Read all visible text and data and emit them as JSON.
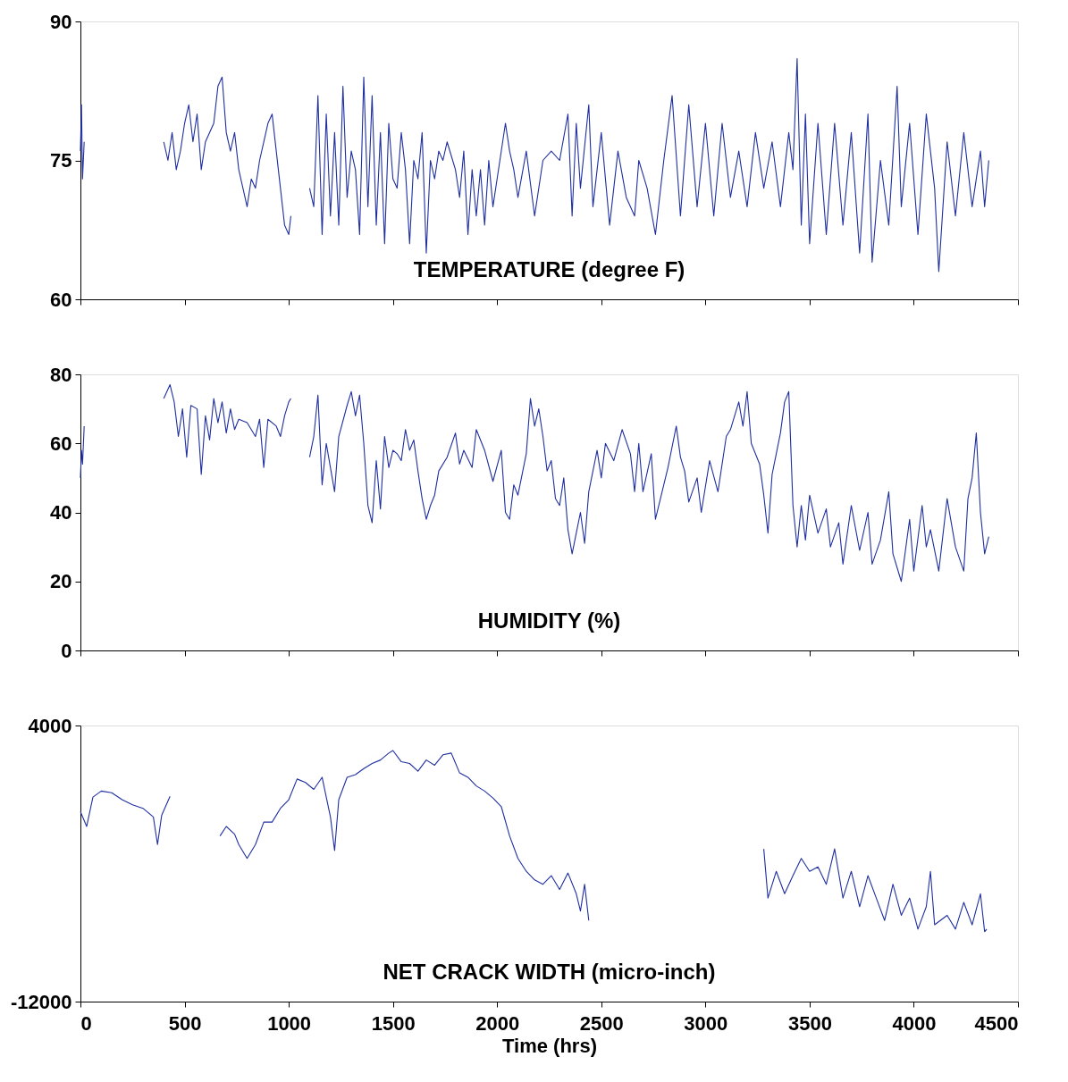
{
  "chart_data": [
    {
      "type": "line",
      "title": "TEMPERATURE (degree F)",
      "xlim": [
        0,
        4500
      ],
      "xticks": [
        0,
        500,
        1000,
        1500,
        2000,
        2500,
        3000,
        3500,
        4000,
        4500
      ],
      "ylim": [
        60,
        90
      ],
      "yticks": [
        60,
        75,
        90
      ],
      "tick_labels": "y",
      "grid": false,
      "line_style": "solid",
      "series": [
        {
          "color": "#1f2fa0",
          "x": [
            0,
            5,
            10,
            18,
            200,
            400,
            420,
            440,
            460,
            480,
            500,
            520,
            540,
            560,
            580,
            600,
            640,
            660,
            680,
            700,
            720,
            740,
            760,
            780,
            800,
            820,
            840,
            860,
            880,
            900,
            920,
            940,
            960,
            980,
            1000,
            1010,
            1050,
            1100,
            1120,
            1140,
            1160,
            1180,
            1200,
            1220,
            1240,
            1260,
            1280,
            1300,
            1320,
            1340,
            1360,
            1380,
            1400,
            1420,
            1440,
            1460,
            1480,
            1500,
            1520,
            1540,
            1560,
            1580,
            1600,
            1620,
            1640,
            1660,
            1680,
            1700,
            1720,
            1740,
            1760,
            1800,
            1820,
            1840,
            1860,
            1880,
            1900,
            1920,
            1940,
            1960,
            1980,
            2000,
            2040,
            2060,
            2080,
            2100,
            2140,
            2180,
            2220,
            2260,
            2300,
            2340,
            2360,
            2380,
            2400,
            2440,
            2460,
            2500,
            2540,
            2580,
            2620,
            2660,
            2680,
            2720,
            2760,
            2800,
            2840,
            2880,
            2920,
            2960,
            3000,
            3040,
            3080,
            3120,
            3160,
            3200,
            3240,
            3280,
            3320,
            3360,
            3400,
            3420,
            3440,
            3460,
            3480,
            3500,
            3540,
            3580,
            3620,
            3660,
            3700,
            3740,
            3780,
            3800,
            3840,
            3880,
            3920,
            3940,
            3980,
            4020,
            4060,
            4100,
            4120,
            4160,
            4200,
            4240,
            4280,
            4320,
            4340,
            4360
          ],
          "values": [
            76,
            81,
            73,
            77,
            null,
            77,
            75,
            78,
            74,
            76,
            79,
            81,
            77,
            80,
            74,
            77,
            79,
            83,
            84,
            78,
            76,
            78,
            74,
            72,
            70,
            73,
            72,
            75,
            77,
            79,
            80,
            76,
            72,
            68,
            67,
            69,
            null,
            72,
            70,
            82,
            67,
            80,
            69,
            78,
            68,
            83,
            71,
            76,
            74,
            67,
            84,
            70,
            82,
            68,
            78,
            66,
            79,
            73,
            72,
            78,
            74,
            66,
            75,
            73,
            78,
            65,
            75,
            73,
            76,
            75,
            77,
            74,
            71,
            76,
            67,
            74,
            69,
            74,
            68,
            75,
            70,
            73,
            79,
            76,
            74,
            71,
            76,
            69,
            75,
            76,
            75,
            80,
            69,
            79,
            72,
            81,
            70,
            78,
            68,
            76,
            71,
            69,
            75,
            72,
            67,
            75,
            82,
            69,
            81,
            70,
            79,
            69,
            79,
            71,
            76,
            70,
            78,
            72,
            77,
            70,
            78,
            74,
            86,
            68,
            80,
            66,
            79,
            67,
            79,
            68,
            78,
            65,
            80,
            64,
            75,
            68,
            83,
            70,
            79,
            67,
            80,
            72,
            63,
            77,
            69,
            78,
            70,
            76,
            70,
            75
          ]
        }
      ]
    },
    {
      "type": "line",
      "title": "HUMIDITY (%)",
      "xlim": [
        0,
        4500
      ],
      "xticks": [
        0,
        500,
        1000,
        1500,
        2000,
        2500,
        3000,
        3500,
        4000,
        4500
      ],
      "ylim": [
        0,
        80
      ],
      "yticks": [
        0,
        20,
        40,
        60,
        80
      ],
      "tick_labels": "y",
      "grid": false,
      "line_style": "solid",
      "series": [
        {
          "color": "#1f2fa0",
          "x": [
            0,
            5,
            10,
            18,
            200,
            400,
            430,
            450,
            470,
            490,
            510,
            530,
            560,
            580,
            600,
            620,
            640,
            660,
            680,
            700,
            720,
            740,
            760,
            800,
            840,
            860,
            880,
            900,
            940,
            960,
            980,
            1000,
            1010,
            1050,
            1100,
            1120,
            1140,
            1160,
            1180,
            1200,
            1220,
            1240,
            1280,
            1300,
            1320,
            1340,
            1360,
            1380,
            1400,
            1420,
            1440,
            1460,
            1480,
            1500,
            1520,
            1540,
            1560,
            1580,
            1600,
            1620,
            1640,
            1660,
            1680,
            1700,
            1720,
            1760,
            1800,
            1820,
            1840,
            1880,
            1900,
            1940,
            1980,
            2020,
            2040,
            2060,
            2080,
            2100,
            2140,
            2160,
            2180,
            2200,
            2220,
            2240,
            2260,
            2280,
            2300,
            2320,
            2340,
            2360,
            2380,
            2400,
            2420,
            2440,
            2480,
            2500,
            2520,
            2560,
            2600,
            2640,
            2660,
            2680,
            2700,
            2740,
            2760,
            2800,
            2820,
            2860,
            2880,
            2900,
            2920,
            2960,
            2980,
            3020,
            3060,
            3100,
            3120,
            3160,
            3180,
            3200,
            3220,
            3260,
            3280,
            3300,
            3320,
            3360,
            3380,
            3400,
            3420,
            3440,
            3460,
            3480,
            3500,
            3540,
            3580,
            3600,
            3640,
            3660,
            3700,
            3740,
            3780,
            3800,
            3840,
            3880,
            3900,
            3940,
            3980,
            4000,
            4040,
            4060,
            4080,
            4120,
            4160,
            4200,
            4240,
            4260,
            4280,
            4300,
            4320,
            4340,
            4360
          ],
          "values": [
            50,
            58,
            54,
            65,
            null,
            73,
            77,
            72,
            62,
            70,
            56,
            71,
            70,
            51,
            68,
            61,
            73,
            66,
            72,
            63,
            70,
            64,
            67,
            66,
            62,
            67,
            53,
            67,
            65,
            62,
            68,
            72,
            73,
            null,
            56,
            62,
            74,
            48,
            60,
            53,
            46,
            62,
            71,
            75,
            68,
            74,
            60,
            42,
            37,
            55,
            41,
            62,
            53,
            58,
            57,
            55,
            64,
            58,
            61,
            52,
            44,
            38,
            42,
            45,
            52,
            56,
            63,
            54,
            58,
            53,
            64,
            58,
            49,
            58,
            40,
            38,
            48,
            45,
            57,
            73,
            65,
            70,
            62,
            52,
            55,
            44,
            42,
            50,
            35,
            28,
            34,
            40,
            31,
            46,
            58,
            50,
            60,
            55,
            64,
            57,
            46,
            60,
            46,
            57,
            38,
            48,
            53,
            65,
            56,
            52,
            43,
            50,
            40,
            55,
            46,
            62,
            64,
            72,
            65,
            75,
            60,
            54,
            45,
            34,
            51,
            63,
            72,
            75,
            42,
            30,
            42,
            32,
            45,
            34,
            41,
            30,
            37,
            25,
            42,
            29,
            40,
            25,
            32,
            46,
            28,
            20,
            38,
            23,
            42,
            30,
            35,
            23,
            44,
            30,
            23,
            44,
            50,
            63,
            40,
            28,
            33
          ]
        }
      ]
    },
    {
      "type": "line",
      "title": "NET CRACK WIDTH (micro-inch)",
      "xlabel": "Time (hrs)",
      "xlim": [
        0,
        4500
      ],
      "xticks": [
        0,
        500,
        1000,
        1500,
        2000,
        2500,
        3000,
        3500,
        4000,
        4500
      ],
      "ylim": [
        -12000,
        4000
      ],
      "yticks": [
        -12000,
        4000
      ],
      "grid": false,
      "line_style": "solid",
      "series": [
        {
          "color": "#1f2fa0",
          "x": [
            0,
            30,
            60,
            100,
            150,
            200,
            250,
            300,
            350,
            370,
            390,
            430,
            550,
            670,
            700,
            740,
            760,
            800,
            840,
            880,
            920,
            960,
            1000,
            1040,
            1080,
            1120,
            1160,
            1200,
            1220,
            1240,
            1280,
            1320,
            1360,
            1400,
            1440,
            1480,
            1500,
            1540,
            1580,
            1620,
            1660,
            1700,
            1740,
            1780,
            1820,
            1860,
            1900,
            1940,
            1980,
            2020,
            2060,
            2100,
            2140,
            2180,
            2220,
            2260,
            2300,
            2340,
            2380,
            2400,
            2420,
            2440,
            2800,
            3280,
            3300,
            3340,
            3380,
            3420,
            3460,
            3500,
            3540,
            3580,
            3620,
            3660,
            3700,
            3740,
            3780,
            3820,
            3860,
            3900,
            3940,
            3980,
            4020,
            4060,
            4080,
            4100,
            4160,
            4200,
            4240,
            4280,
            4320,
            4340,
            4350
          ],
          "values": [
            -1000,
            -1850,
            -150,
            200,
            100,
            -300,
            -600,
            -800,
            -1300,
            -2900,
            -1200,
            -100,
            null,
            -2400,
            -1850,
            -2300,
            -2900,
            -3700,
            -2900,
            -1600,
            -1600,
            -800,
            -300,
            900,
            700,
            300,
            1000,
            -1300,
            -3250,
            -300,
            1000,
            1150,
            1500,
            1800,
            2000,
            2400,
            2550,
            1900,
            1800,
            1350,
            2000,
            1700,
            2300,
            2400,
            1250,
            1000,
            500,
            200,
            -200,
            -700,
            -2400,
            -3700,
            -4450,
            -4950,
            -5200,
            -4700,
            -5500,
            -4550,
            -5750,
            -6750,
            -5200,
            -7300,
            null,
            -3150,
            -6000,
            -4450,
            -5750,
            -4700,
            -3700,
            -4450,
            -4200,
            -5200,
            -3150,
            -6000,
            -4450,
            -6500,
            -4700,
            -6000,
            -7300,
            -5200,
            -7000,
            -6000,
            -7800,
            -6500,
            -4450,
            -7550,
            -7000,
            -7800,
            -6250,
            -7550,
            -5750,
            -7950,
            -7800
          ]
        }
      ]
    }
  ]
}
